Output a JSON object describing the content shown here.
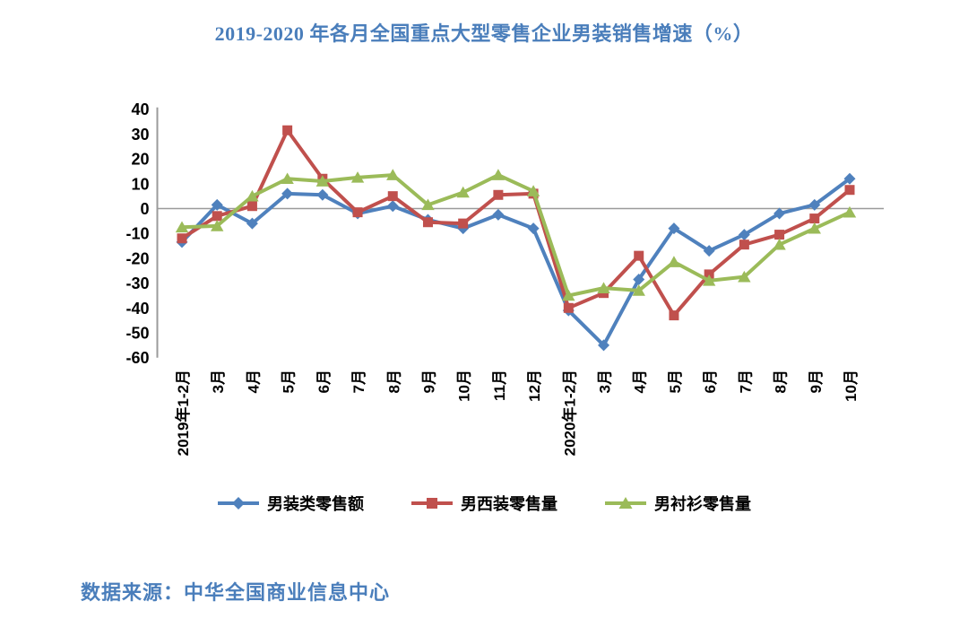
{
  "page": {
    "title": "2019-2020 年各月全国重点大型零售企业男装销售增速（%）",
    "source": "数据来源：中华全国商业信息中心"
  },
  "colors": {
    "title_text": "#4a7ebb",
    "source_text": "#4a7ebb",
    "axis_line": "#9b9b9b",
    "zero_line": "#9b9b9b",
    "series_blue": "#4F81BD",
    "series_red": "#C0504D",
    "series_green": "#9BBB59"
  },
  "chart_data": {
    "type": "line",
    "title": "2019-2020 年各月全国重点大型零售企业男装销售增速（%）",
    "xlabel": "",
    "ylabel": "",
    "ylim": [
      -60,
      40
    ],
    "yticks": [
      40,
      30,
      20,
      10,
      0,
      -10,
      -20,
      -30,
      -40,
      -50,
      -60
    ],
    "grid": "zero-line-only",
    "legend_position": "bottom",
    "categories": [
      "2019年1-2月",
      "3月",
      "4月",
      "5月",
      "6月",
      "7月",
      "8月",
      "9月",
      "10月",
      "11月",
      "12月",
      "2020年1-2月",
      "3月",
      "4月",
      "5月",
      "6月",
      "7月",
      "8月",
      "9月",
      "10月"
    ],
    "series": [
      {
        "name": "男装类零售额",
        "color": "#4F81BD",
        "marker": "diamond",
        "values": [
          -13.5,
          1.5,
          -6,
          6,
          5.5,
          -2,
          1,
          -4.5,
          -8,
          -2.5,
          -8,
          -41,
          -55,
          -28.5,
          -8,
          -17,
          -10.5,
          -2,
          1.5,
          12
        ]
      },
      {
        "name": "男西装零售量",
        "color": "#C0504D",
        "marker": "square",
        "values": [
          -12,
          -3,
          1,
          31.5,
          12,
          -1.5,
          5,
          -5.5,
          -6,
          5.5,
          6,
          -40,
          -34,
          -19,
          -43,
          -26.5,
          -14.5,
          -10.5,
          -4,
          7.5
        ]
      },
      {
        "name": "男衬衫零售量",
        "color": "#9BBB59",
        "marker": "triangle",
        "values": [
          -7.5,
          -7,
          5,
          12,
          11,
          12.5,
          13.5,
          1.5,
          6.5,
          13.5,
          7,
          -35,
          -32,
          -33,
          -21.5,
          -29,
          -27.5,
          -14.5,
          -8,
          -1.5
        ]
      }
    ]
  }
}
